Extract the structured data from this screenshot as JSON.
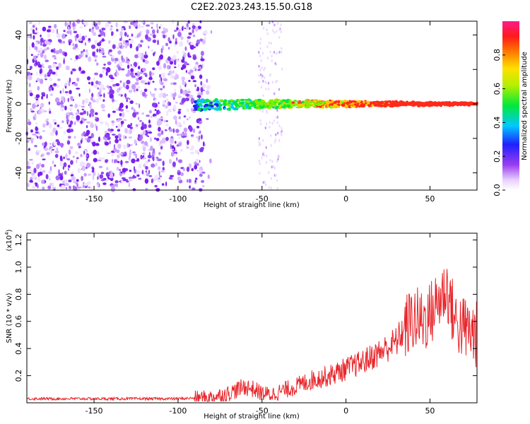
{
  "title": "C2E2.2023.243.15.50.G18",
  "chart_data": [
    {
      "type": "heatmap",
      "xlabel": "Height of straight line (km)",
      "ylabel": "Frequency (Hz)",
      "xlim": [
        -190,
        78
      ],
      "ylim": [
        -50,
        48
      ],
      "x_ticks": [
        -150,
        -100,
        -50,
        0,
        50
      ],
      "y_ticks": [
        -40,
        -20,
        0,
        20,
        40
      ],
      "colorbar": {
        "label": "Normalized spectral amplitude",
        "range": [
          0,
          1
        ],
        "ticks": [
          "0.0",
          "0.2",
          "0.4",
          "0.6",
          "0.8"
        ],
        "colormap": "rainbow (white-violet-blue-cyan-green-yellow-orange-red-magenta)"
      },
      "features": {
        "noise_region_x": [
          -190,
          -85
        ],
        "signal_start_x": -90,
        "signal_center_freq": 0,
        "faint_noise_band_x": [
          -52,
          -38
        ]
      }
    },
    {
      "type": "line",
      "xlabel": "Height of straight line (km)",
      "ylabel": "SNR (10 * v/v)",
      "multiplier_label": "(x10",
      "multiplier_exp": "4",
      "xlim": [
        -190,
        78
      ],
      "ylim": [
        0,
        1.25
      ],
      "x_ticks": [
        -150,
        -100,
        -50,
        0,
        50
      ],
      "y_ticks": [
        0.2,
        0.4,
        0.6,
        0.8,
        1.0,
        1.2
      ],
      "series": [
        {
          "color": "#e8262b",
          "x": [
            -190,
            -150,
            -100,
            -80,
            -70,
            -60,
            -55,
            -50,
            -45,
            -40,
            -30,
            -20,
            -10,
            0,
            10,
            20,
            30,
            35,
            40,
            45,
            50,
            55,
            60,
            65,
            70,
            78
          ],
          "y": [
            0.03,
            0.03,
            0.03,
            0.04,
            0.07,
            0.12,
            0.1,
            0.07,
            0.06,
            0.08,
            0.12,
            0.17,
            0.2,
            0.25,
            0.3,
            0.37,
            0.45,
            0.55,
            0.62,
            0.6,
            0.65,
            0.75,
            0.85,
            0.6,
            0.55,
            0.5
          ]
        }
      ]
    }
  ]
}
